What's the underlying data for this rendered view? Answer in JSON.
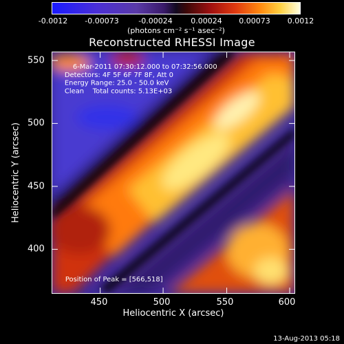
{
  "colorbar": {
    "ticks": [
      "-0.0012",
      "-0.00073",
      "-0.00024",
      "0.00024",
      "0.00073",
      "0.0012"
    ],
    "units": "(photons cm⁻² s⁻¹ asec⁻²)",
    "range": [
      -0.0012,
      0.0012
    ]
  },
  "title": "Reconstructed RHESSI Image",
  "info": {
    "time": "6-Mar-2011 07:30:12.000 to 07:32:56.000",
    "detectors": "Detectors: 4F 5F 6F 7F 8F, Att 0",
    "energy": "Energy Range: 25.0 - 50.0 keV",
    "clean": "Clean    Total counts: 5.13E+03",
    "peak": "Position of Peak = [566,518]"
  },
  "axes": {
    "xlabel": "Heliocentric X (arcsec)",
    "ylabel": "Heliocentric Y (arcsec)",
    "xticks": [
      "450",
      "500",
      "550",
      "600"
    ],
    "yticks": [
      "550",
      "500",
      "450",
      "400"
    ],
    "xlim": [
      412,
      604
    ],
    "ylim": [
      365,
      557
    ]
  },
  "timestamp": "13-Aug-2013 05:18"
}
